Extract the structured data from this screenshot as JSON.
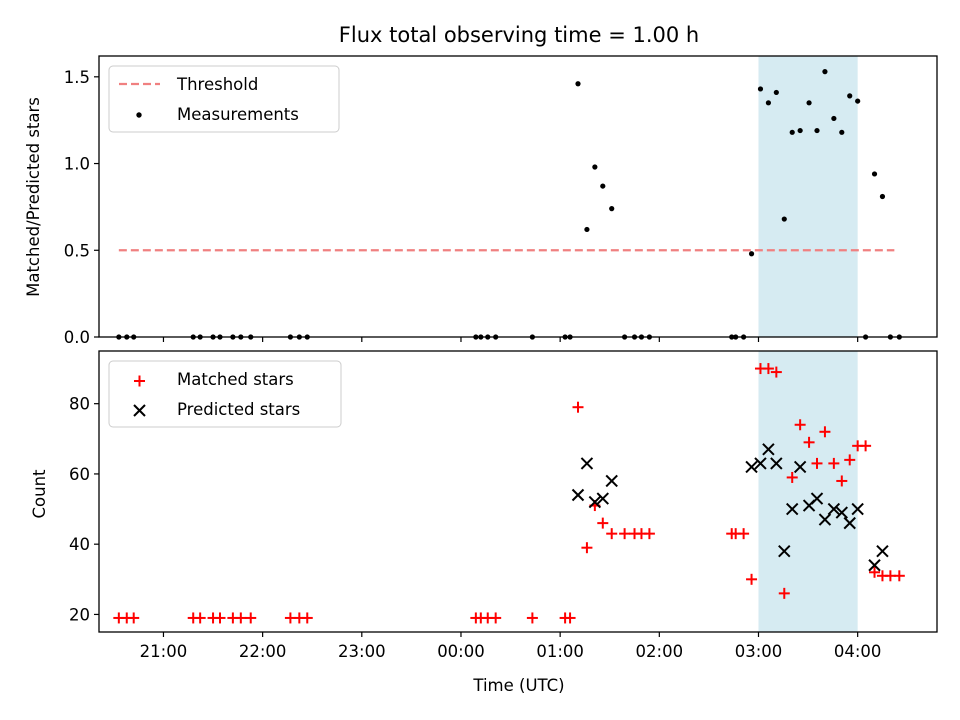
{
  "chart_data": [
    {
      "type": "scatter",
      "title": "Flux total observing time = 1.00 h",
      "xlabel": "",
      "ylabel": "Matched/Predicted stars",
      "xlim": [
        -3.65,
        4.8
      ],
      "ylim": [
        0,
        1.62
      ],
      "yticks": [
        0.0,
        0.5,
        1.0,
        1.5
      ],
      "ytick_labels": [
        "0.0",
        "0.5",
        "1.0",
        "1.5"
      ],
      "highlight_span": [
        3.0,
        4.0
      ],
      "legend": {
        "position": "upper-left",
        "entries": [
          "Threshold",
          "Measurements"
        ]
      },
      "series": [
        {
          "name": "Threshold",
          "kind": "line",
          "color": "#f08080",
          "x": [
            -3.45,
            4.37
          ],
          "y": [
            0.5,
            0.5
          ]
        },
        {
          "name": "Measurements",
          "kind": "scatter",
          "color": "#000000",
          "points": [
            [
              -3.45,
              0
            ],
            [
              -3.37,
              0
            ],
            [
              -3.3,
              0
            ],
            [
              -2.7,
              0
            ],
            [
              -2.63,
              0
            ],
            [
              -2.5,
              0
            ],
            [
              -2.43,
              0
            ],
            [
              -2.3,
              0
            ],
            [
              -2.22,
              0
            ],
            [
              -2.12,
              0
            ],
            [
              -1.72,
              0
            ],
            [
              -1.63,
              0
            ],
            [
              -1.55,
              0
            ],
            [
              0.15,
              0
            ],
            [
              0.2,
              0
            ],
            [
              0.27,
              0
            ],
            [
              0.35,
              0
            ],
            [
              0.72,
              0
            ],
            [
              1.05,
              0
            ],
            [
              1.1,
              0
            ],
            [
              1.18,
              1.46
            ],
            [
              1.27,
              0.62
            ],
            [
              1.35,
              0.98
            ],
            [
              1.43,
              0.87
            ],
            [
              1.52,
              0.74
            ],
            [
              1.65,
              0
            ],
            [
              1.75,
              0
            ],
            [
              1.82,
              0
            ],
            [
              1.9,
              0
            ],
            [
              2.73,
              0
            ],
            [
              2.77,
              0
            ],
            [
              2.85,
              0
            ],
            [
              2.93,
              0.48
            ],
            [
              3.02,
              1.43
            ],
            [
              3.1,
              1.35
            ],
            [
              3.18,
              1.41
            ],
            [
              3.26,
              0.68
            ],
            [
              3.34,
              1.18
            ],
            [
              3.42,
              1.19
            ],
            [
              3.51,
              1.35
            ],
            [
              3.59,
              1.19
            ],
            [
              3.67,
              1.53
            ],
            [
              3.76,
              1.26
            ],
            [
              3.84,
              1.18
            ],
            [
              3.92,
              1.39
            ],
            [
              4.0,
              1.36
            ],
            [
              4.08,
              0
            ],
            [
              4.17,
              0.94
            ],
            [
              4.25,
              0.81
            ],
            [
              4.33,
              0
            ],
            [
              4.42,
              0
            ]
          ]
        }
      ]
    },
    {
      "type": "scatter",
      "title": "",
      "xlabel": "Time (UTC)",
      "ylabel": "Count",
      "xlim": [
        -3.65,
        4.8
      ],
      "ylim": [
        15,
        95
      ],
      "yticks": [
        20,
        40,
        60,
        80
      ],
      "ytick_labels": [
        "20",
        "40",
        "60",
        "80"
      ],
      "xticks": [
        -3,
        -2,
        -1,
        0,
        1,
        2,
        3,
        4
      ],
      "xtick_labels": [
        "21:00",
        "22:00",
        "23:00",
        "00:00",
        "01:00",
        "02:00",
        "03:00",
        "04:00"
      ],
      "highlight_span": [
        3.0,
        4.0
      ],
      "legend": {
        "position": "upper-left",
        "entries": [
          "Matched stars",
          "Predicted stars"
        ]
      },
      "series": [
        {
          "name": "Matched stars",
          "kind": "plus",
          "color": "#ff0000",
          "points": [
            [
              -3.45,
              19
            ],
            [
              -3.37,
              19
            ],
            [
              -3.3,
              19
            ],
            [
              -2.7,
              19
            ],
            [
              -2.63,
              19
            ],
            [
              -2.5,
              19
            ],
            [
              -2.43,
              19
            ],
            [
              -2.3,
              19
            ],
            [
              -2.22,
              19
            ],
            [
              -2.12,
              19
            ],
            [
              -1.72,
              19
            ],
            [
              -1.63,
              19
            ],
            [
              -1.55,
              19
            ],
            [
              0.15,
              19
            ],
            [
              0.2,
              19
            ],
            [
              0.27,
              19
            ],
            [
              0.35,
              19
            ],
            [
              0.72,
              19
            ],
            [
              1.05,
              19
            ],
            [
              1.1,
              19
            ],
            [
              1.18,
              79
            ],
            [
              1.27,
              39
            ],
            [
              1.35,
              51
            ],
            [
              1.43,
              46
            ],
            [
              1.52,
              43
            ],
            [
              1.65,
              43
            ],
            [
              1.75,
              43
            ],
            [
              1.82,
              43
            ],
            [
              1.9,
              43
            ],
            [
              2.73,
              43
            ],
            [
              2.77,
              43
            ],
            [
              2.85,
              43
            ],
            [
              2.93,
              30
            ],
            [
              3.02,
              90
            ],
            [
              3.1,
              90
            ],
            [
              3.18,
              89
            ],
            [
              3.26,
              26
            ],
            [
              3.34,
              59
            ],
            [
              3.42,
              74
            ],
            [
              3.51,
              69
            ],
            [
              3.59,
              63
            ],
            [
              3.67,
              72
            ],
            [
              3.76,
              63
            ],
            [
              3.84,
              58
            ],
            [
              3.92,
              64
            ],
            [
              4.0,
              68
            ],
            [
              4.08,
              68
            ],
            [
              4.17,
              32
            ],
            [
              4.25,
              31
            ],
            [
              4.33,
              31
            ],
            [
              4.42,
              31
            ]
          ]
        },
        {
          "name": "Predicted stars",
          "kind": "cross",
          "color": "#000000",
          "points": [
            [
              1.18,
              54
            ],
            [
              1.27,
              63
            ],
            [
              1.35,
              52
            ],
            [
              1.43,
              53
            ],
            [
              1.52,
              58
            ],
            [
              2.93,
              62
            ],
            [
              3.02,
              63
            ],
            [
              3.1,
              67
            ],
            [
              3.18,
              63
            ],
            [
              3.26,
              38
            ],
            [
              3.34,
              50
            ],
            [
              3.42,
              62
            ],
            [
              3.51,
              51
            ],
            [
              3.59,
              53
            ],
            [
              3.67,
              47
            ],
            [
              3.76,
              50
            ],
            [
              3.84,
              49
            ],
            [
              3.92,
              46
            ],
            [
              4.0,
              50
            ],
            [
              4.17,
              34
            ],
            [
              4.25,
              38
            ]
          ]
        }
      ]
    }
  ]
}
